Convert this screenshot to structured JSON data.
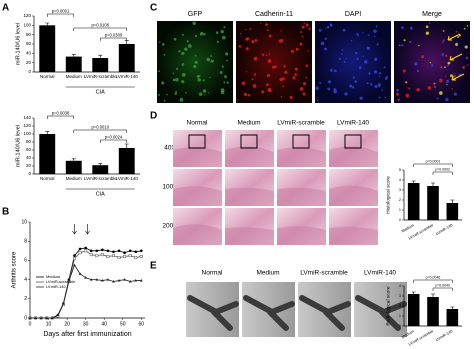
{
  "figure": {
    "panel_labels": [
      "A",
      "B",
      "C",
      "D",
      "E"
    ],
    "C": {
      "columns": [
        "GFP",
        "Cadherin-11",
        "DAPI",
        "Merge"
      ]
    },
    "D": {
      "columns": [
        "Normal",
        "Medium",
        "LVmiR-scramble",
        "LVmiR-140"
      ],
      "rows": [
        "40X",
        "100X",
        "200X"
      ]
    },
    "E": {
      "columns": [
        "Normal",
        "Medium",
        "LVmiR-scramble",
        "LVmiR-140"
      ]
    }
  },
  "chart_data": [
    {
      "type": "bar",
      "y_label": "miR-140/U6 level",
      "categories": [
        "Normal",
        "Medium",
        "LVmiR-scramble",
        "LVmiR-140"
      ],
      "values": [
        100,
        33,
        30,
        60
      ],
      "errors": [
        5,
        4,
        6,
        7
      ],
      "color": "#000000",
      "ylim": [
        0,
        120
      ],
      "yticks": [
        0,
        20,
        40,
        60,
        80,
        100,
        120
      ],
      "group_label": "CIA",
      "annotations": [
        "p=0.0001",
        "p=0.0106",
        "p=0.0309"
      ]
    },
    {
      "type": "bar",
      "y_label": "miR-140/U6 level",
      "categories": [
        "Normal",
        "Medium",
        "LVmiR-scramble",
        "LVmiR-140"
      ],
      "values": [
        100,
        33,
        22,
        65
      ],
      "errors": [
        6,
        5,
        4,
        10
      ],
      "color": "#000000",
      "ylim": [
        0,
        140
      ],
      "yticks": [
        0,
        20,
        40,
        60,
        80,
        100,
        120,
        140
      ],
      "group_label": "CIA",
      "annotations": [
        "p=0.0038",
        "p=0.0010",
        "p=0.0024"
      ]
    },
    {
      "type": "line",
      "x_label": "Days after first immunization",
      "y_label": "Arthritis score",
      "x": [
        0,
        3,
        6,
        9,
        12,
        15,
        18,
        21,
        24,
        27,
        30,
        33,
        36,
        39,
        42,
        45,
        48,
        51,
        54,
        57,
        60
      ],
      "series": [
        {
          "name": "Medium",
          "color": "#000000",
          "values": [
            0,
            0,
            0,
            0,
            0,
            0.3,
            1.5,
            4,
            6.5,
            7.2,
            7.3,
            7,
            7,
            7.1,
            7,
            6.9,
            7,
            6.8,
            7,
            6.9,
            7
          ]
        },
        {
          "name": "LVmiR-scramble",
          "color": "#555555",
          "values": [
            0,
            0,
            0,
            0,
            0,
            0.2,
            1.4,
            3.8,
            6.2,
            6.8,
            7,
            6.6,
            6.5,
            6.6,
            6.4,
            6.5,
            6.3,
            6.4,
            6.5,
            6.3,
            6.4
          ]
        },
        {
          "name": "LVmiR-140",
          "color": "#222222",
          "values": [
            0,
            0,
            0,
            0,
            0,
            0.3,
            1.5,
            3.9,
            5.5,
            4.6,
            4.2,
            4,
            4,
            3.9,
            4,
            3.8,
            3.9,
            4,
            3.8,
            3.9,
            3.9
          ]
        }
      ],
      "xlim": [
        0,
        62
      ],
      "xticks": [
        0,
        10,
        20,
        30,
        40,
        50,
        60
      ],
      "ylim": [
        0,
        10
      ],
      "yticks": [
        0,
        2,
        4,
        6,
        8,
        10
      ]
    },
    {
      "type": "bar",
      "y_label": "Histological score",
      "categories": [
        "Medium",
        "LVmiR-scramble",
        "LVmiR-140"
      ],
      "values": [
        3.7,
        3.4,
        1.7
      ],
      "errors": [
        0.2,
        0.3,
        0.3
      ],
      "color": "#000000",
      "ylim": [
        0,
        5
      ],
      "yticks": [
        0,
        1,
        2,
        3,
        4,
        5
      ],
      "annotations": [
        "p=0.0001",
        "p=0.0002"
      ]
    },
    {
      "type": "bar",
      "y_label": "Radiological score",
      "categories": [
        "Medium",
        "LVmiR-scramble",
        "LVmiR-140"
      ],
      "values": [
        3.2,
        2.9,
        1.7
      ],
      "errors": [
        0.2,
        0.3,
        0.2
      ],
      "color": "#000000",
      "ylim": [
        0,
        4
      ],
      "yticks": [
        0,
        1,
        2,
        3,
        4
      ],
      "annotations": [
        "p=0.0046",
        "p=0.0049"
      ]
    }
  ]
}
